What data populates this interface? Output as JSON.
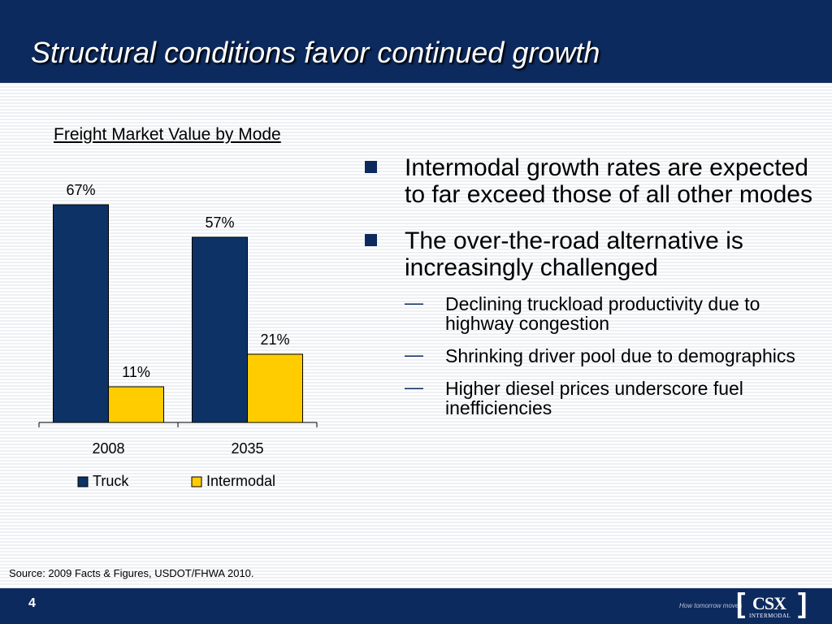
{
  "title": "Structural conditions favor continued growth",
  "chart_heading": "Freight Market Value by Mode",
  "chart_data": {
    "type": "bar",
    "categories": [
      "2008",
      "2035"
    ],
    "series": [
      {
        "name": "Truck",
        "values": [
          67,
          57
        ],
        "labels": [
          "67%",
          "57%"
        ],
        "color": "#0d3366"
      },
      {
        "name": "Intermodal",
        "values": [
          11,
          21
        ],
        "labels": [
          "11%",
          "21%"
        ],
        "color": "#ffcc00"
      }
    ],
    "title": "Freight Market Value by Mode",
    "xlabel": "",
    "ylabel": "",
    "ylim": [
      0,
      70
    ],
    "grid": false,
    "legend": "bottom"
  },
  "bullets": [
    {
      "text": "Intermodal growth rates are expected to far exceed those of all other modes",
      "subs": []
    },
    {
      "text": "The over-the-road alternative is increasingly challenged",
      "subs": [
        "Declining truckload productivity due to highway congestion",
        "Shrinking driver pool due to demographics",
        "Higher diesel prices underscore fuel inefficiencies"
      ]
    }
  ],
  "source": "Source: 2009 Facts & Figures, USDOT/FHWA 2010.",
  "footer": {
    "page_number": "4",
    "tagline": "How tomorrow moves",
    "logo_text": "CSX",
    "logo_sub": "INTERMODAL"
  },
  "colors": {
    "navy": "#0d2a5e",
    "truck": "#0d3366",
    "intermodal": "#ffcc00"
  }
}
